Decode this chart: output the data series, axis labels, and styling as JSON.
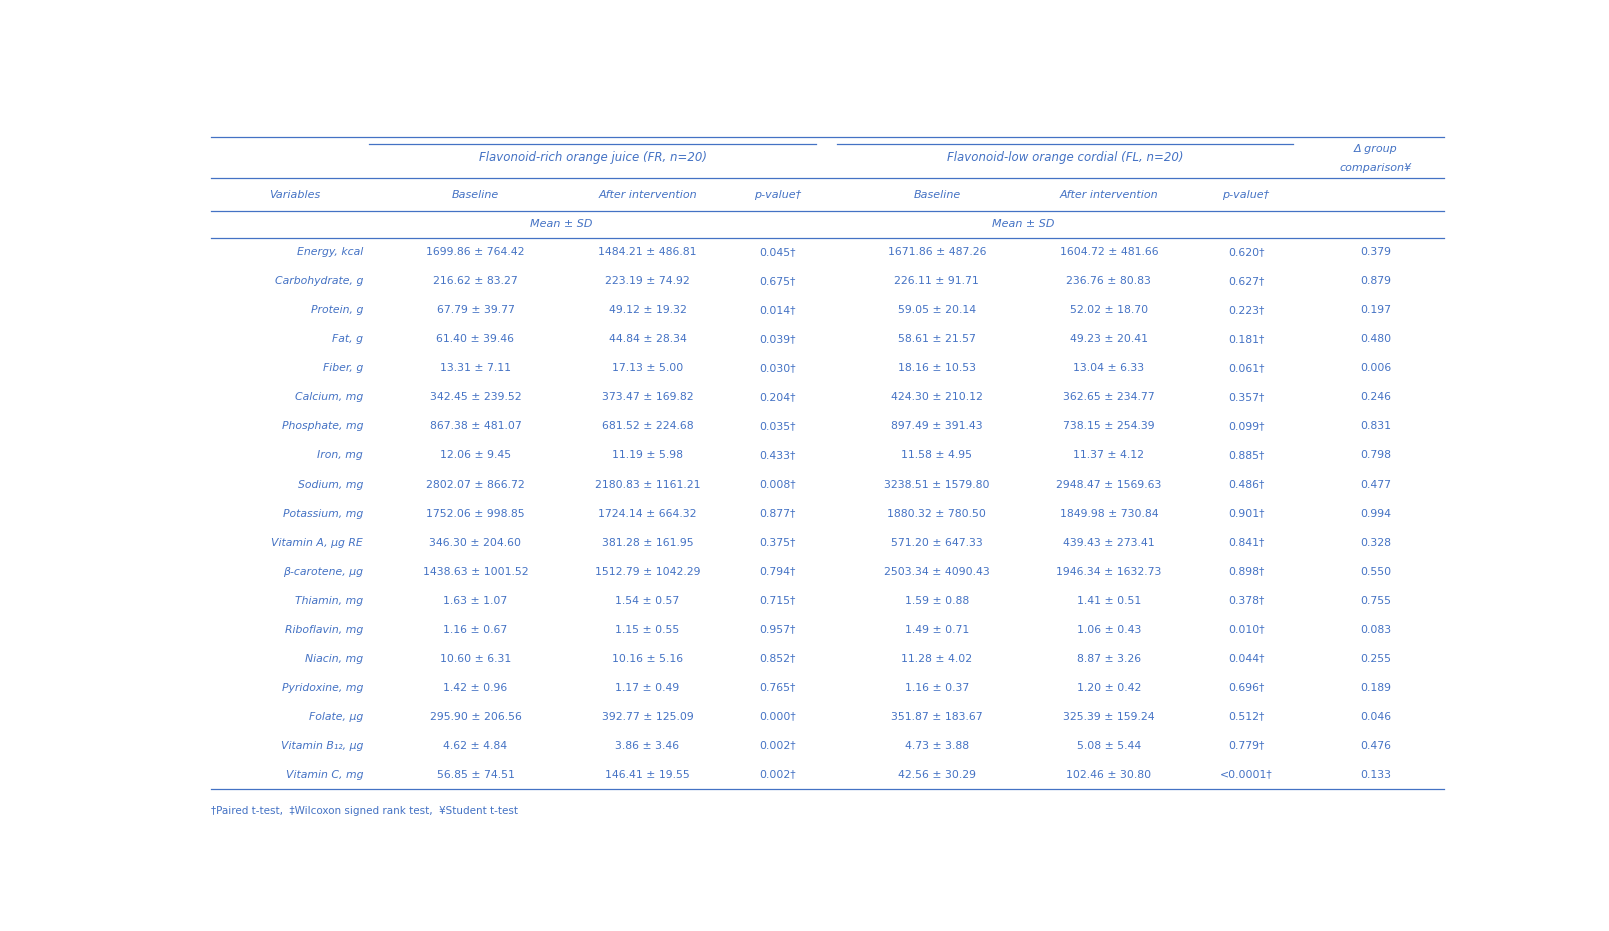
{
  "rows": [
    [
      "Energy, kcal",
      "1699.86 ± 764.42",
      "1484.21 ± 486.81",
      "0.045†",
      "1671.86 ± 487.26",
      "1604.72 ± 481.66",
      "0.620†",
      "0.379"
    ],
    [
      "Carbohydrate, g",
      "216.62 ± 83.27",
      "223.19 ± 74.92",
      "0.675†",
      "226.11 ± 91.71",
      "236.76 ± 80.83",
      "0.627†",
      "0.879"
    ],
    [
      "Protein, g",
      "67.79 ± 39.77",
      "49.12 ± 19.32",
      "0.014†",
      "59.05 ± 20.14",
      "52.02 ± 18.70",
      "0.223†",
      "0.197"
    ],
    [
      "Fat, g",
      "61.40 ± 39.46",
      "44.84 ± 28.34",
      "0.039†",
      "58.61 ± 21.57",
      "49.23 ± 20.41",
      "0.181†",
      "0.480"
    ],
    [
      "Fiber, g",
      "13.31 ± 7.11",
      "17.13 ± 5.00",
      "0.030†",
      "18.16 ± 10.53",
      "13.04 ± 6.33",
      "0.061†",
      "0.006"
    ],
    [
      "Calcium, mg",
      "342.45 ± 239.52",
      "373.47 ± 169.82",
      "0.204†",
      "424.30 ± 210.12",
      "362.65 ± 234.77",
      "0.357†",
      "0.246"
    ],
    [
      "Phosphate, mg",
      "867.38 ± 481.07",
      "681.52 ± 224.68",
      "0.035†",
      "897.49 ± 391.43",
      "738.15 ± 254.39",
      "0.099†",
      "0.831"
    ],
    [
      "Iron, mg",
      "12.06 ± 9.45",
      "11.19 ± 5.98",
      "0.433†",
      "11.58 ± 4.95",
      "11.37 ± 4.12",
      "0.885†",
      "0.798"
    ],
    [
      "Sodium, mg",
      "2802.07 ± 866.72",
      "2180.83 ± 1161.21",
      "0.008†",
      "3238.51 ± 1579.80",
      "2948.47 ± 1569.63",
      "0.486†",
      "0.477"
    ],
    [
      "Potassium, mg",
      "1752.06 ± 998.85",
      "1724.14 ± 664.32",
      "0.877†",
      "1880.32 ± 780.50",
      "1849.98 ± 730.84",
      "0.901†",
      "0.994"
    ],
    [
      "Vitamin A, μg RE",
      "346.30 ± 204.60",
      "381.28 ± 161.95",
      "0.375†",
      "571.20 ± 647.33",
      "439.43 ± 273.41",
      "0.841†",
      "0.328"
    ],
    [
      "β-carotene, μg",
      "1438.63 ± 1001.52",
      "1512.79 ± 1042.29",
      "0.794†",
      "2503.34 ± 4090.43",
      "1946.34 ± 1632.73",
      "0.898†",
      "0.550"
    ],
    [
      "Thiamin, mg",
      "1.63 ± 1.07",
      "1.54 ± 0.57",
      "0.715†",
      "1.59 ± 0.88",
      "1.41 ± 0.51",
      "0.378†",
      "0.755"
    ],
    [
      "Riboflavin, mg",
      "1.16 ± 0.67",
      "1.15 ± 0.55",
      "0.957†",
      "1.49 ± 0.71",
      "1.06 ± 0.43",
      "0.010†",
      "0.083"
    ],
    [
      "Niacin, mg",
      "10.60 ± 6.31",
      "10.16 ± 5.16",
      "0.852†",
      "11.28 ± 4.02",
      "8.87 ± 3.26",
      "0.044†",
      "0.255"
    ],
    [
      "Pyridoxine, mg",
      "1.42 ± 0.96",
      "1.17 ± 0.49",
      "0.765†",
      "1.16 ± 0.37",
      "1.20 ± 0.42",
      "0.696†",
      "0.189"
    ],
    [
      "Folate, μg",
      "295.90 ± 206.56",
      "392.77 ± 125.09",
      "0.000†",
      "351.87 ± 183.67",
      "325.39 ± 159.24",
      "0.512†",
      "0.046"
    ],
    [
      "Vitamin B₁₂, μg",
      "4.62 ± 4.84",
      "3.86 ± 3.46",
      "0.002†",
      "4.73 ± 3.88",
      "5.08 ± 5.44",
      "0.779†",
      "0.476"
    ],
    [
      "Vitamin C, mg",
      "56.85 ± 74.51",
      "146.41 ± 19.55",
      "0.002†",
      "42.56 ± 30.29",
      "102.46 ± 30.80",
      "<0.0001†",
      "0.133"
    ]
  ],
  "text_color": "#4472c4",
  "bg_color": "#ffffff",
  "line_color": "#4472c4",
  "fr_header": "Flavonoid-rich orange juice (FR, n=20)",
  "fl_header": "Flavonoid-low orange cordial (FL, n=20)",
  "delta_header_line1": "Δ group",
  "delta_header_line2": "comparison¥",
  "variables_label": "Variables",
  "baseline_label": "Baseline",
  "after_label": "After intervention",
  "pvalue_label": "p-value†",
  "mean_sd_label": "Mean ± SD",
  "footnote_dagger": "†Paired t-test,",
  "footnote_ddagger": "‡Wilcoxon signed rank test,",
  "footnote_yen": "¥Student t-test"
}
